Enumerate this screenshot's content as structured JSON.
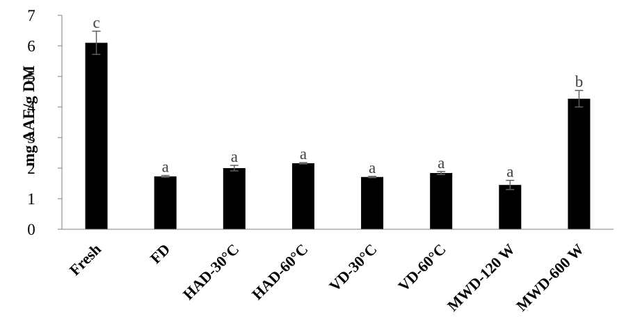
{
  "chart_data": {
    "type": "bar",
    "title": "",
    "xlabel": "",
    "ylabel": "mg AAE/g DM",
    "ylim": [
      0,
      7
    ],
    "yticks": [
      0,
      1,
      2,
      3,
      4,
      5,
      6,
      7
    ],
    "grid": false,
    "categories": [
      "Fresh",
      "FD",
      "HAD-30°C",
      "HAD-60°C",
      "VD-30°C",
      "VD-60°C",
      "MWD-120 W",
      "MWD-600 W"
    ],
    "values": [
      6.1,
      1.73,
      2.0,
      2.16,
      1.71,
      1.84,
      1.45,
      4.27
    ],
    "errors": [
      0.38,
      0.03,
      0.09,
      0.02,
      0.02,
      0.05,
      0.15,
      0.27
    ],
    "significance": [
      "c",
      "a",
      "a",
      "a",
      "a",
      "a",
      "a",
      "b"
    ],
    "colors": {
      "bar": "#000000",
      "error_bar": "#606060",
      "significance_text": "#404040",
      "axis": "#808080"
    }
  }
}
